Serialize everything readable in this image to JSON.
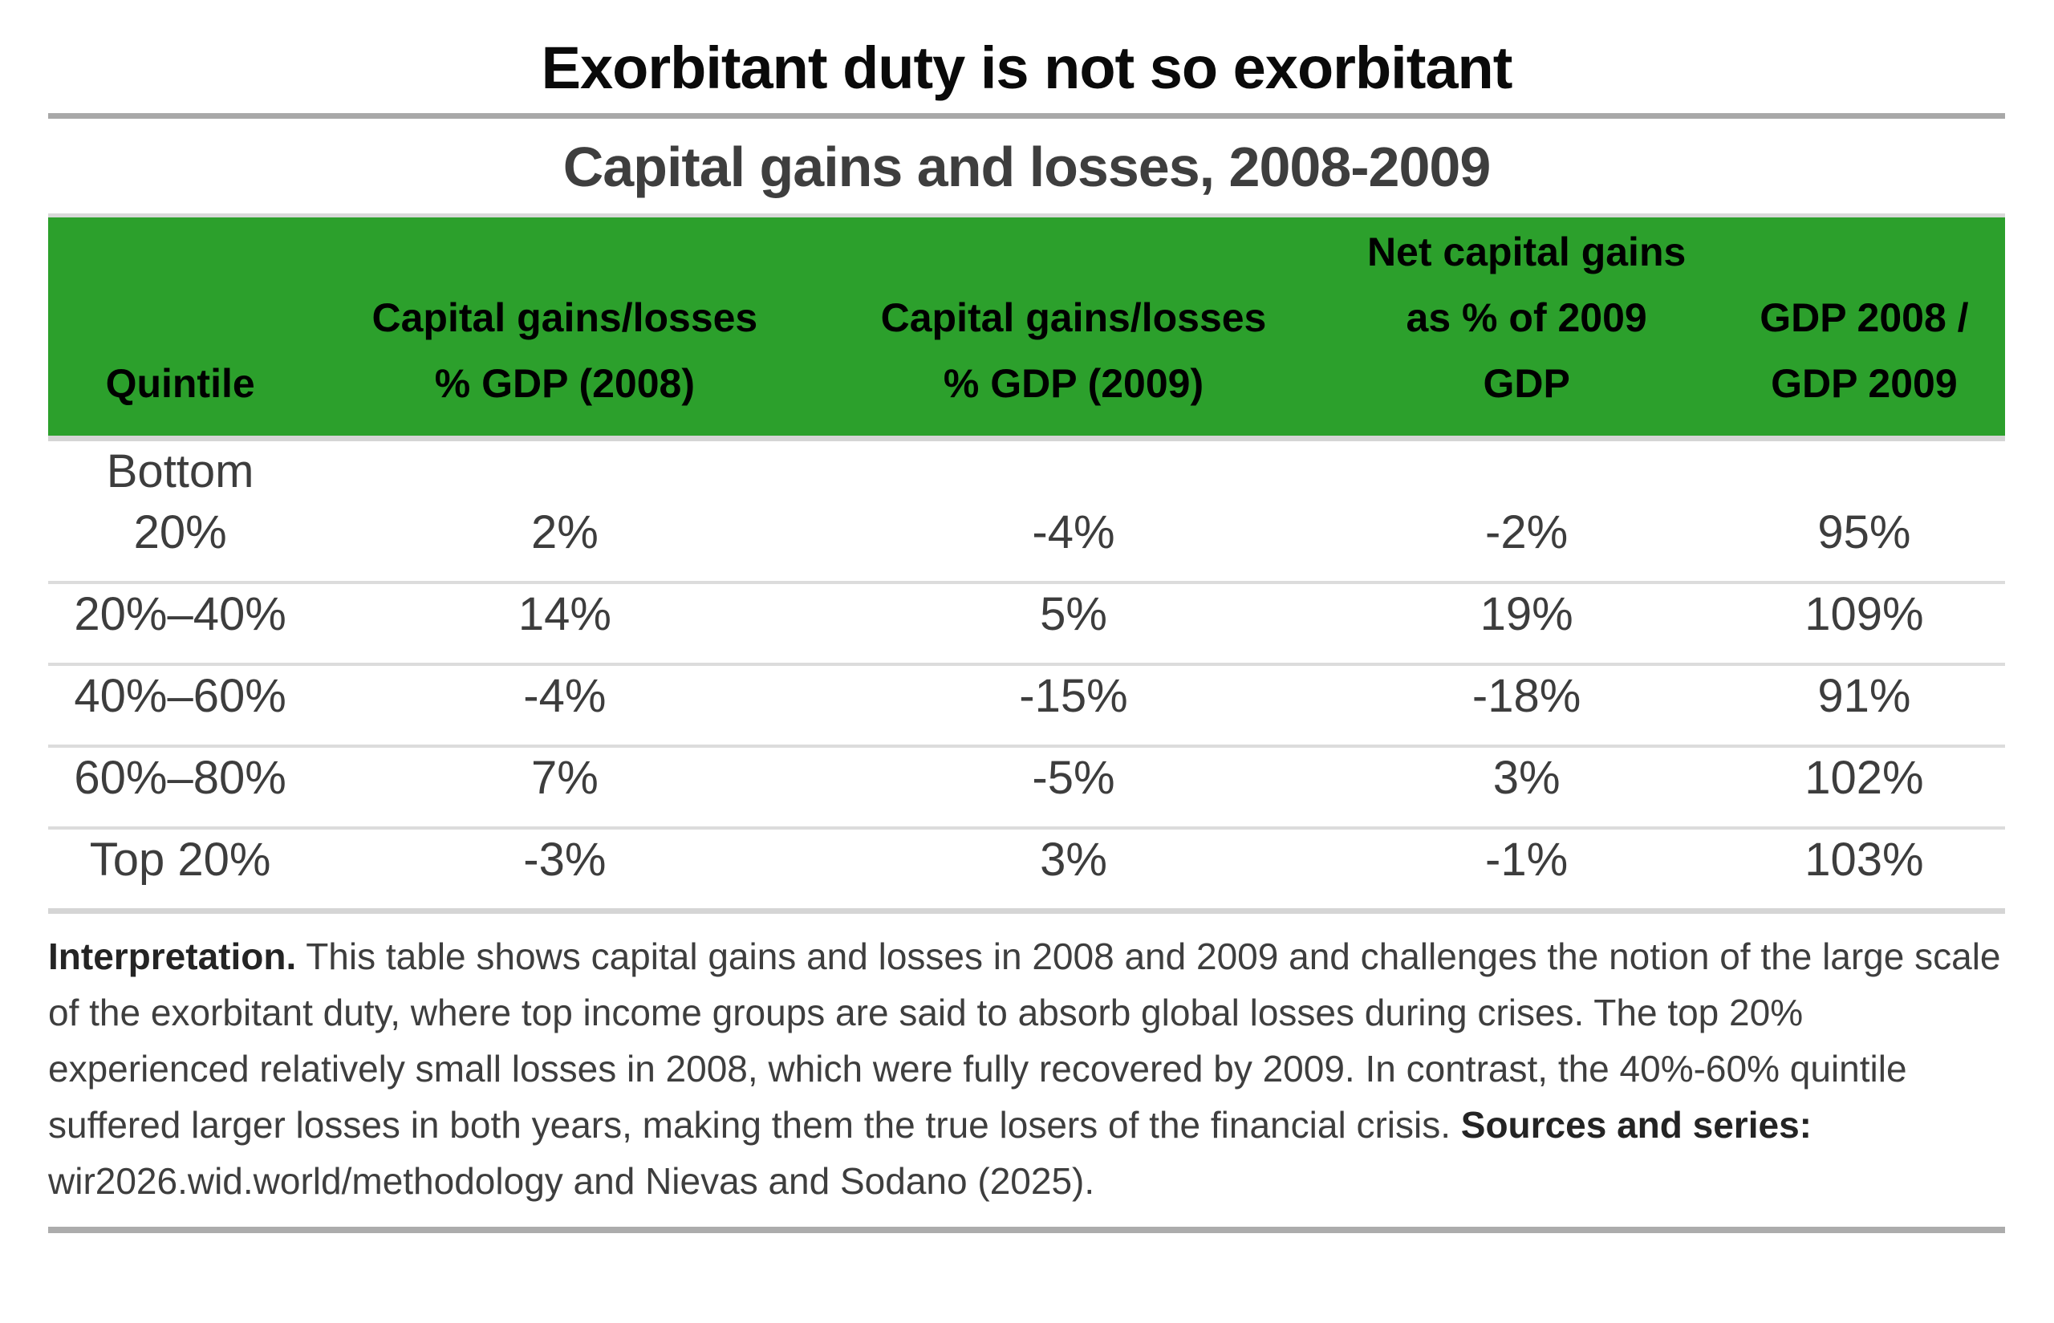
{
  "title": "Exorbitant duty is not so exorbitant",
  "subtitle": "Capital gains and losses, 2008-2009",
  "table": {
    "columns": [
      {
        "key": "quintile",
        "label": "Quintile"
      },
      {
        "key": "cg_2008",
        "label": "Capital gains/losses\n% GDP (2008)"
      },
      {
        "key": "cg_2009",
        "label": "Capital gains/losses\n% GDP (2009)"
      },
      {
        "key": "net_cg_2009",
        "label": "Net capital gains\nas % of 2009\nGDP"
      },
      {
        "key": "gdp_ratio",
        "label": "GDP 2008 /\nGDP 2009"
      }
    ],
    "rows": [
      {
        "quintile": "Bottom\n20%",
        "values": [
          "2%",
          "-4%",
          "-2%",
          "95%"
        ]
      },
      {
        "quintile": "20%–40%",
        "values": [
          "14%",
          "5%",
          "19%",
          "109%"
        ]
      },
      {
        "quintile": "40%–60%",
        "values": [
          "-4%",
          "-15%",
          "-18%",
          "91%"
        ]
      },
      {
        "quintile": "60%–80%",
        "values": [
          "7%",
          "-5%",
          "3%",
          "102%"
        ]
      },
      {
        "quintile": "Top 20%",
        "values": [
          "-3%",
          "3%",
          "-1%",
          "103%"
        ]
      }
    ]
  },
  "interpretation": {
    "segments": [
      {
        "bold": true,
        "text": "Interpretation."
      },
      {
        "bold": false,
        "text": " This table shows capital gains and losses in 2008 and 2009 and challenges the notion of the large scale of the exorbitant duty, where top income groups are said to absorb global losses during crises. The top 20% experienced relatively small losses in 2008, which were fully recovered by 2009. In contrast, the 40%-60% quintile suffered larger losses in both years, making them the true losers of the financial crisis. "
      },
      {
        "bold": true,
        "text": "Sources and series:"
      },
      {
        "bold": false,
        "text": " wir2026.wid.world/methodology and Nievas and Sodano (2025)."
      }
    ]
  },
  "colors": {
    "header_green": "#2ca02c",
    "header_text": "#000000",
    "title_text": "#0a0a0a",
    "subtitle_text": "#3e3e3e",
    "body_text": "#3d3d3d",
    "rule_dark_gray": "#a8a8a8",
    "row_divider": "#dcdcdc"
  },
  "chart_data": {
    "type": "table",
    "title": "Capital gains and losses, 2008-2009",
    "categories": [
      "Bottom 20%",
      "20%–40%",
      "40%–60%",
      "60%–80%",
      "Top 20%"
    ],
    "series": [
      {
        "name": "Capital gains/losses % GDP (2008)",
        "values": [
          2,
          14,
          -4,
          7,
          -3
        ],
        "unit": "%"
      },
      {
        "name": "Capital gains/losses % GDP (2009)",
        "values": [
          -4,
          5,
          -15,
          -5,
          3
        ],
        "unit": "%"
      },
      {
        "name": "Net capital gains as % of 2009 GDP",
        "values": [
          -2,
          19,
          -18,
          3,
          -1
        ],
        "unit": "%"
      },
      {
        "name": "GDP 2008 / GDP 2009",
        "values": [
          95,
          109,
          91,
          102,
          103
        ],
        "unit": "%"
      }
    ]
  }
}
